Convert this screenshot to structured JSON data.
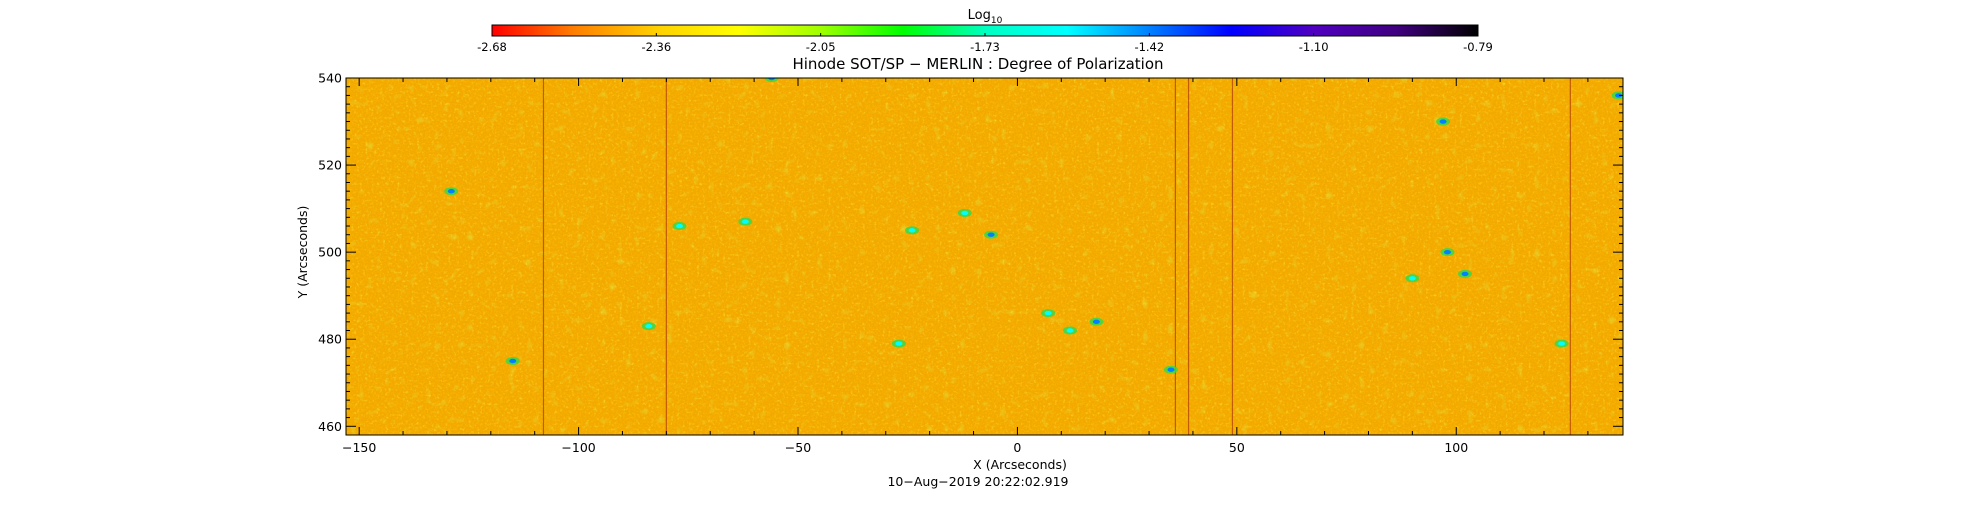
{
  "colorbar": {
    "label_main": "Log",
    "label_sub": "10",
    "ticks": [
      "-2.68",
      "-2.36",
      "-2.05",
      "-1.73",
      "-1.42",
      "-1.10",
      "-0.79"
    ],
    "range": [
      -2.68,
      -0.79
    ],
    "colormap": [
      "#ff0000",
      "#ff7f00",
      "#ffd000",
      "#ffff00",
      "#9fff00",
      "#00ff00",
      "#00ffc0",
      "#00ffff",
      "#0080ff",
      "#0000ff",
      "#5000c0",
      "#400080",
      "#000000"
    ]
  },
  "chart_data": {
    "type": "heatmap",
    "title": "Hinode SOT/SP − MERLIN : Degree of Polarization",
    "xlabel": "X (Arcseconds)",
    "ylabel": "Y (Arcseconds)",
    "xlim": [
      -153,
      138
    ],
    "ylim": [
      458,
      540
    ],
    "xticks": [
      -150,
      -100,
      -50,
      0,
      50,
      100
    ],
    "yticks": [
      460,
      480,
      500,
      520,
      540
    ],
    "x_tick_labels": [
      "−150",
      "−100",
      "−50",
      "0",
      "50",
      "100"
    ],
    "y_tick_labels": [
      "460",
      "480",
      "500",
      "520",
      "540"
    ],
    "typical_log_value": -2.3,
    "colors": {
      "background_field": "#f2a800",
      "enhancement": "#38d848"
    },
    "vertical_slit_lines_x": [
      -108,
      -80,
      36,
      39,
      49,
      126
    ],
    "enhanced_patches": [
      {
        "x": -129,
        "y": 514,
        "v": -1.45
      },
      {
        "x": -77,
        "y": 506,
        "v": -1.6
      },
      {
        "x": -62,
        "y": 507,
        "v": -1.55
      },
      {
        "x": -24,
        "y": 505,
        "v": -1.65
      },
      {
        "x": -12,
        "y": 509,
        "v": -1.5
      },
      {
        "x": -6,
        "y": 504,
        "v": -1.4
      },
      {
        "x": 7,
        "y": 486,
        "v": -1.6
      },
      {
        "x": 12,
        "y": 482,
        "v": -1.5
      },
      {
        "x": 18,
        "y": 484,
        "v": -1.4
      },
      {
        "x": 35,
        "y": 473,
        "v": -1.45
      },
      {
        "x": 97,
        "y": 530,
        "v": -1.45
      },
      {
        "x": 90,
        "y": 494,
        "v": -1.6
      },
      {
        "x": 98,
        "y": 500,
        "v": -1.45
      },
      {
        "x": 102,
        "y": 495,
        "v": -1.4
      },
      {
        "x": -115,
        "y": 475,
        "v": -1.45
      },
      {
        "x": -84,
        "y": 483,
        "v": -1.6
      },
      {
        "x": -27,
        "y": 479,
        "v": -1.55
      },
      {
        "x": 137,
        "y": 536,
        "v": -1.45
      },
      {
        "x": -56,
        "y": 540,
        "v": -1.45
      },
      {
        "x": 124,
        "y": 479,
        "v": -1.6
      }
    ],
    "timestamp": "10−Aug−2019 20:22:02.919"
  }
}
